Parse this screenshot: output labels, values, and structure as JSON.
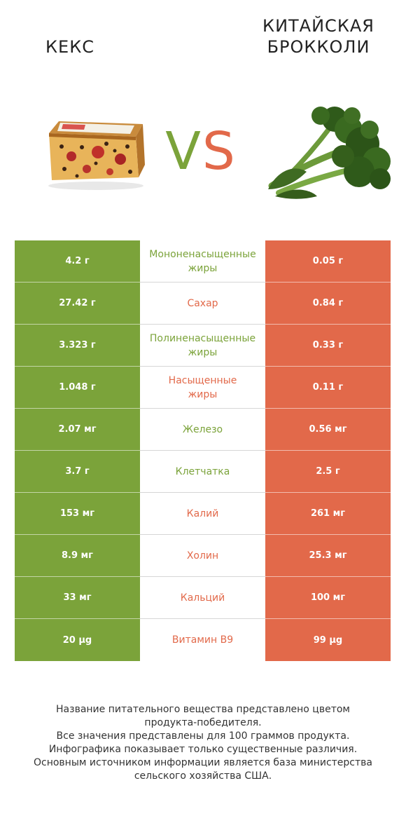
{
  "header": {
    "left_title": "КЕКС",
    "right_title": "КИТАЙСКАЯ\nБРОККОЛИ",
    "vs_v": "V",
    "vs_s": "S"
  },
  "colors": {
    "left_accent": "#7ba33a",
    "right_accent": "#e2694a"
  },
  "images": {
    "left": "cake-image",
    "right": "broccoli-image"
  },
  "rows": [
    {
      "left": "4.2 г",
      "nutrient": "Мононенасыщенные\nжиры",
      "right": "0.05 г",
      "winner": "left"
    },
    {
      "left": "27.42 г",
      "nutrient": "Сахар",
      "right": "0.84 г",
      "winner": "right"
    },
    {
      "left": "3.323 г",
      "nutrient": "Полиненасыщенные\nжиры",
      "right": "0.33 г",
      "winner": "left"
    },
    {
      "left": "1.048 г",
      "nutrient": "Насыщенные\nжиры",
      "right": "0.11 г",
      "winner": "right"
    },
    {
      "left": "2.07 мг",
      "nutrient": "Железо",
      "right": "0.56 мг",
      "winner": "left"
    },
    {
      "left": "3.7 г",
      "nutrient": "Клетчатка",
      "right": "2.5 г",
      "winner": "left"
    },
    {
      "left": "153 мг",
      "nutrient": "Калий",
      "right": "261 мг",
      "winner": "right"
    },
    {
      "left": "8.9 мг",
      "nutrient": "Холин",
      "right": "25.3 мг",
      "winner": "right"
    },
    {
      "left": "33 мг",
      "nutrient": "Кальций",
      "right": "100 мг",
      "winner": "right"
    },
    {
      "left": "20 µg",
      "nutrient": "Витамин B9",
      "right": "99 µg",
      "winner": "right"
    }
  ],
  "footer": "Название питательного вещества представлено цветом\nпродукта-победителя.\nВсе значения представлены для 100 граммов продукта.\nИнфографика показывает только существенные различия.\nОсновным источником информации является база министерства\nсельского хозяйства США."
}
